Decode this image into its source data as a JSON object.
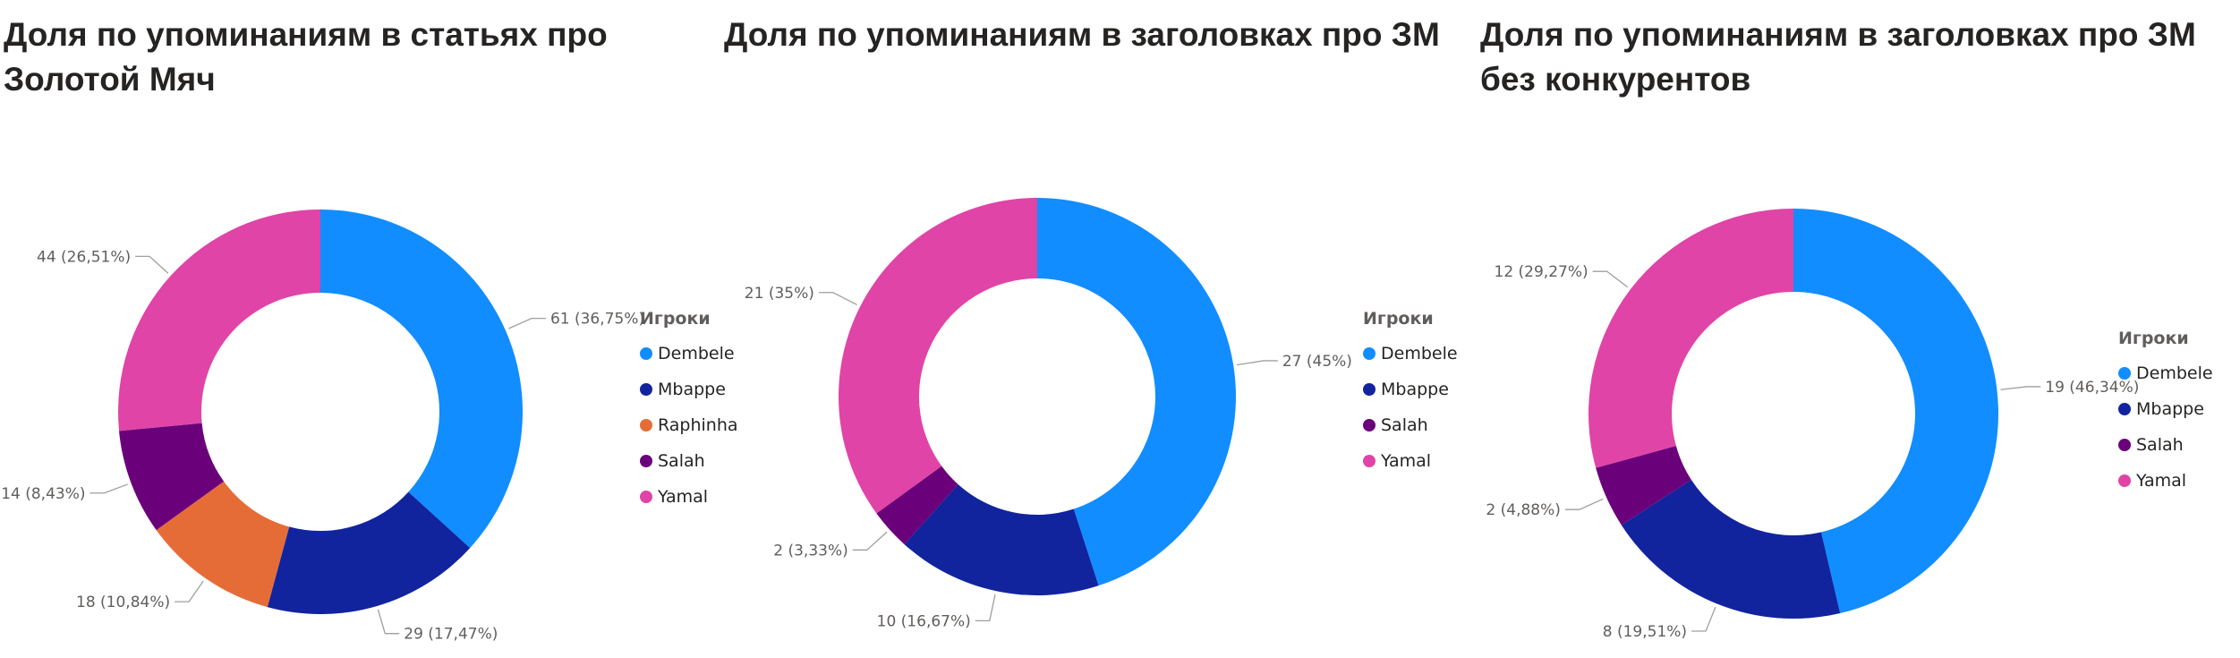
{
  "chart_data": [
    {
      "type": "donut",
      "title": "Доля по упоминаниям в статьях про\nЗолотой Мяч",
      "legend_title": "Игроки",
      "legend_position": "right",
      "series": [
        {
          "name": "Dembele",
          "value": 61,
          "percent": "36,75%",
          "color": "#118DFF",
          "label": "61 (36,75%)"
        },
        {
          "name": "Mbappe",
          "value": 29,
          "percent": "17,47%",
          "color": "#12239E",
          "label": "29 (17,47%)"
        },
        {
          "name": "Raphinha",
          "value": 18,
          "percent": "10,84%",
          "color": "#E66C37",
          "label": "18 (10,84%)"
        },
        {
          "name": "Salah",
          "value": 14,
          "percent": "8,43%",
          "color": "#6B007B",
          "label": "14 (8,43%)"
        },
        {
          "name": "Yamal",
          "value": 44,
          "percent": "26,51%",
          "color": "#E044A7",
          "label": "44 (26,51%)"
        }
      ],
      "legend_items": [
        "Dembele",
        "Mbappe",
        "Raphinha",
        "Salah",
        "Yamal"
      ]
    },
    {
      "type": "donut",
      "title": "Доля по упоминаниям в заголовках про ЗМ",
      "legend_title": "Игроки",
      "legend_position": "right",
      "series": [
        {
          "name": "Dembele",
          "value": 27,
          "percent": "45%",
          "color": "#118DFF",
          "label": "27 (45%)"
        },
        {
          "name": "Mbappe",
          "value": 10,
          "percent": "16,67%",
          "color": "#12239E",
          "label": "10 (16,67%)"
        },
        {
          "name": "Salah",
          "value": 2,
          "percent": "3,33%",
          "color": "#6B007B",
          "label": "2 (3,33%)"
        },
        {
          "name": "Yamal",
          "value": 21,
          "percent": "35%",
          "color": "#E044A7",
          "label": "21 (35%)"
        }
      ],
      "legend_items": [
        "Dembele",
        "Mbappe",
        "Salah",
        "Yamal"
      ]
    },
    {
      "type": "donut",
      "title": "Доля по упоминаниям в заголовках про ЗМ\nбез конкурентов",
      "legend_title": "Игроки",
      "legend_position": "right",
      "series": [
        {
          "name": "Dembele",
          "value": 19,
          "percent": "46,34%",
          "color": "#118DFF",
          "label": "19 (46,34%)"
        },
        {
          "name": "Mbappe",
          "value": 8,
          "percent": "19,51%",
          "color": "#12239E",
          "label": "8 (19,51%)"
        },
        {
          "name": "Salah",
          "value": 2,
          "percent": "4,88%",
          "color": "#6B007B",
          "label": "2 (4,88%)"
        },
        {
          "name": "Yamal",
          "value": 12,
          "percent": "29,27%",
          "color": "#E044A7",
          "label": "12 (29,27%)"
        }
      ],
      "legend_items": [
        "Dembele",
        "Mbappe",
        "Salah",
        "Yamal"
      ]
    }
  ]
}
